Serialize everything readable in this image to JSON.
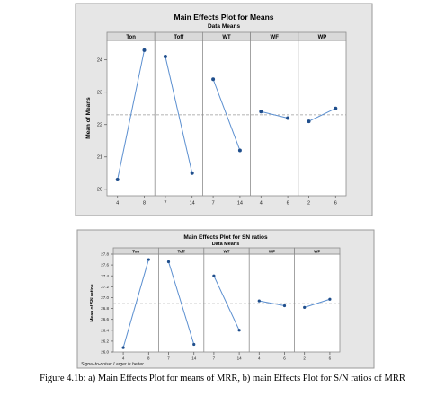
{
  "caption": "Figure 4.1b: a) Main Effects Plot for means of MRR, b) main Effects Plot for S/N ratios of MRR",
  "chart_data": [
    {
      "type": "line",
      "title": "Main Effects Plot for Means",
      "subtitle": "Data Means",
      "ylabel": "Mean of Means",
      "ylim": [
        19.8,
        24.6
      ],
      "yticks": [
        "20",
        "21",
        "22",
        "23",
        "24"
      ],
      "reference_line": 22.3,
      "footnote": "",
      "factors": [
        {
          "name": "Ton",
          "levels": [
            "4",
            "8"
          ],
          "values": [
            20.3,
            24.3
          ]
        },
        {
          "name": "Toff",
          "levels": [
            "7",
            "14"
          ],
          "values": [
            24.1,
            20.5
          ]
        },
        {
          "name": "WT",
          "levels": [
            "7",
            "14"
          ],
          "values": [
            23.4,
            21.2
          ]
        },
        {
          "name": "WF",
          "levels": [
            "4",
            "6"
          ],
          "values": [
            22.4,
            22.2
          ]
        },
        {
          "name": "WP",
          "levels": [
            "2",
            "6"
          ],
          "values": [
            22.1,
            22.5
          ]
        }
      ]
    },
    {
      "type": "line",
      "title": "Main Effects Plot for SN ratios",
      "subtitle": "Data Means",
      "ylabel": "Mean of SN ratios",
      "ylim": [
        26.0,
        27.8
      ],
      "yticks": [
        "26.0",
        "26.2",
        "26.4",
        "26.6",
        "26.8",
        "27.0",
        "27.2",
        "27.4",
        "27.6",
        "27.8"
      ],
      "reference_line": 26.89,
      "footnote": "Signal-to-noise: Larger is better",
      "factors": [
        {
          "name": "Ton",
          "levels": [
            "4",
            "8"
          ],
          "values": [
            26.08,
            27.7
          ]
        },
        {
          "name": "Toff",
          "levels": [
            "7",
            "14"
          ],
          "values": [
            27.66,
            26.14
          ]
        },
        {
          "name": "WT",
          "levels": [
            "7",
            "14"
          ],
          "values": [
            27.4,
            26.4
          ]
        },
        {
          "name": "WF",
          "levels": [
            "4",
            "6"
          ],
          "values": [
            26.94,
            26.85
          ]
        },
        {
          "name": "WP",
          "levels": [
            "2",
            "6"
          ],
          "values": [
            26.82,
            26.97
          ]
        }
      ]
    }
  ]
}
